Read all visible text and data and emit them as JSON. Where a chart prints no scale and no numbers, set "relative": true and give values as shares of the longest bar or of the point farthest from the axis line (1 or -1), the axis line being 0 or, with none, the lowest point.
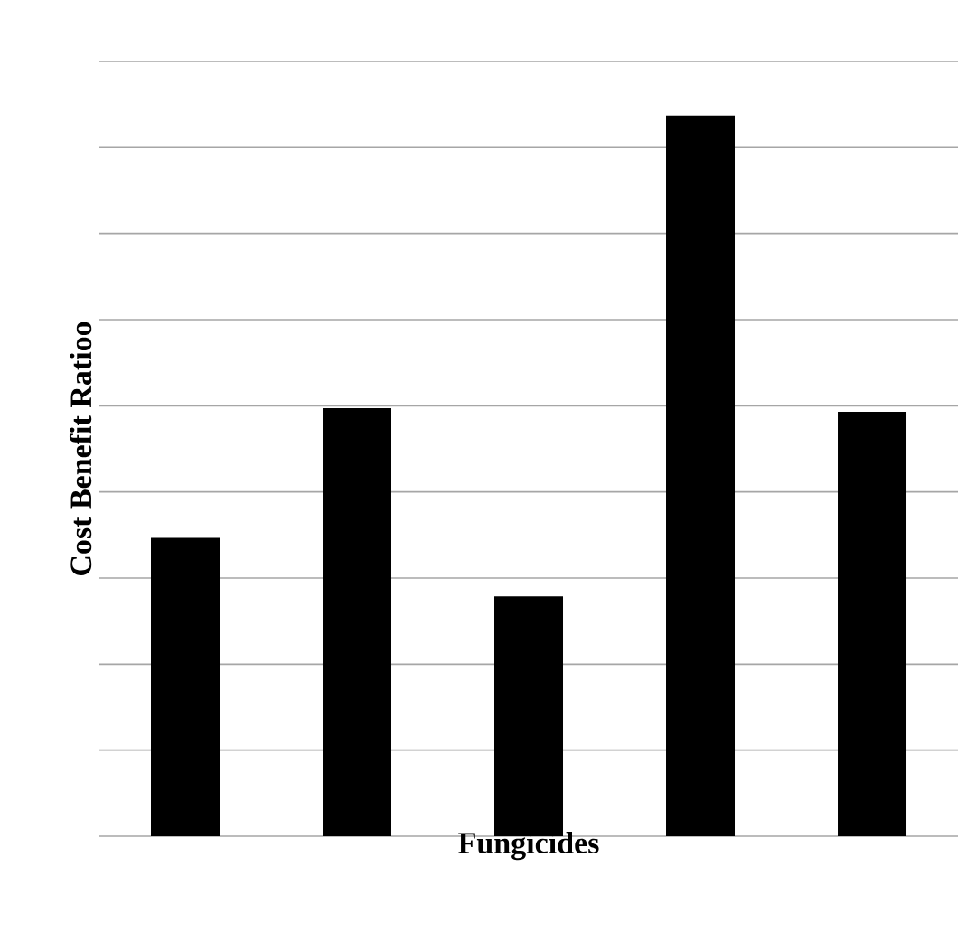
{
  "chart_data": {
    "type": "bar",
    "xlabel": "Fungicides",
    "ylabel": "Cost Benefit Ratioo",
    "relative": true,
    "grid": "y",
    "categories": [
      null,
      null,
      null,
      null,
      null
    ],
    "values": [
      0.414,
      0.594,
      0.333,
      1,
      0.589
    ],
    "color": "#000000"
  }
}
